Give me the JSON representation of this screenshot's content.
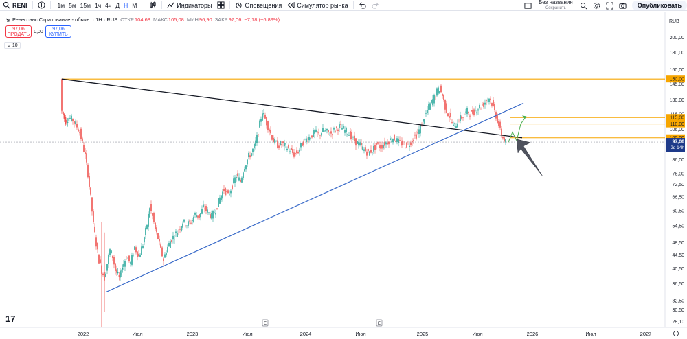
{
  "toolbar": {
    "symbol": "RENI",
    "intervals": [
      {
        "label": "1м",
        "active": false
      },
      {
        "label": "5м",
        "active": false
      },
      {
        "label": "15м",
        "active": false
      },
      {
        "label": "1ч",
        "active": false
      },
      {
        "label": "4ч",
        "active": false
      },
      {
        "label": "Д",
        "active": false
      },
      {
        "label": "Н",
        "active": true
      },
      {
        "label": "М",
        "active": false
      }
    ],
    "indicators_label": "Индикаторы",
    "alerts_label": "Оповещения",
    "replay_label": "Симулятор рынка",
    "layout_name": "Без названия",
    "layout_saved": "Сохранить",
    "publish_label": "Опубликовать"
  },
  "legend": {
    "title": "Ренессанс Страхование - обыкн. · 1Н · RUS",
    "open_label": "ОТКР",
    "open_value": "104,68",
    "high_label": "МАКС",
    "high_value": "105,08",
    "low_label": "МИН",
    "low_value": "96,90",
    "close_label": "ЗАКР",
    "close_value": "97,06",
    "change": "−7,18 (−6,89%)",
    "sell_price": "97,06",
    "sell_label": "ПРОДАТЬ",
    "spread": "0,00",
    "buy_price": "97,06",
    "buy_label": "КУПИТЬ",
    "volume_chip": "10"
  },
  "colors": {
    "up": "#26a69a",
    "down": "#ef5350",
    "orange": "#f7a600",
    "blue": "#3a6bc9",
    "black": "#131722",
    "green": "#4caf50",
    "arrow": "#50535e"
  },
  "chart_data": {
    "type": "candlestick",
    "currency": "RUB",
    "price_scale": "log",
    "price_labels": [
      "220,00",
      "200,00",
      "180,00",
      "160,00",
      "145,00",
      "130,00",
      "118,00",
      "106,00",
      "86,00",
      "78,00",
      "72,50",
      "66,50",
      "60,50",
      "54,50",
      "48,50",
      "44,50",
      "40,50",
      "36,50",
      "32,50",
      "30,50",
      "28,10"
    ],
    "price_levels": [
      220,
      200,
      180,
      160,
      145,
      130,
      118,
      106,
      86,
      78,
      72.5,
      66.5,
      60.5,
      54.5,
      48.5,
      44.5,
      40.5,
      36.5,
      32.5,
      30.5,
      28.1
    ],
    "time_labels": [
      "2022",
      "Июл",
      "2023",
      "Июл",
      "2024",
      "Июл",
      "2025",
      "Июл",
      "2026",
      "Июл",
      "2027"
    ],
    "time_label_t": [
      121,
      200,
      280,
      360,
      445,
      525,
      615,
      695,
      775,
      860,
      940
    ],
    "earnings_markers_t": [
      386,
      552
    ],
    "horizontal_levels": [
      {
        "label": "150,00",
        "value": 150
      },
      {
        "label": "115,00",
        "value": 115
      },
      {
        "label": "110,00",
        "value": 110
      },
      {
        "label": "100,00",
        "value": 100
      }
    ],
    "last_price": {
      "label": "97,06",
      "value": 97.06,
      "countdown": "2d 14h"
    },
    "trendlines": [
      {
        "name": "resistance-trendline",
        "from": {
          "t": 90,
          "p": 150
        },
        "to": {
          "t": 760,
          "p": 100
        }
      },
      {
        "name": "support-trendline",
        "from": {
          "t": 155,
          "p": 34.5
        },
        "to": {
          "t": 762,
          "p": 127
        }
      }
    ],
    "candles_anchor_points": [
      [
        90,
        150
      ],
      [
        92,
        120
      ],
      [
        97,
        112
      ],
      [
        102,
        115
      ],
      [
        108,
        113
      ],
      [
        114,
        108
      ],
      [
        118,
        104
      ],
      [
        122,
        96
      ],
      [
        126,
        88
      ],
      [
        130,
        78
      ],
      [
        134,
        66
      ],
      [
        138,
        55
      ],
      [
        142,
        48
      ],
      [
        146,
        43
      ],
      [
        150,
        40
      ],
      [
        154,
        38
      ],
      [
        158,
        42
      ],
      [
        162,
        46
      ],
      [
        166,
        44
      ],
      [
        170,
        40
      ],
      [
        175,
        38
      ],
      [
        180,
        41
      ],
      [
        186,
        44
      ],
      [
        192,
        42
      ],
      [
        198,
        47
      ],
      [
        204,
        44
      ],
      [
        210,
        48
      ],
      [
        216,
        55
      ],
      [
        220,
        62
      ],
      [
        224,
        58
      ],
      [
        228,
        53
      ],
      [
        232,
        50
      ],
      [
        236,
        46
      ],
      [
        240,
        43
      ],
      [
        244,
        46
      ],
      [
        250,
        49
      ],
      [
        256,
        51
      ],
      [
        262,
        53
      ],
      [
        268,
        56
      ],
      [
        274,
        55
      ],
      [
        280,
        56
      ],
      [
        286,
        59
      ],
      [
        292,
        58
      ],
      [
        298,
        62
      ],
      [
        304,
        60
      ],
      [
        310,
        58
      ],
      [
        316,
        61
      ],
      [
        322,
        66
      ],
      [
        328,
        70
      ],
      [
        334,
        67
      ],
      [
        340,
        72
      ],
      [
        346,
        77
      ],
      [
        352,
        74
      ],
      [
        356,
        80
      ],
      [
        360,
        84
      ],
      [
        364,
        88
      ],
      [
        368,
        90
      ],
      [
        372,
        94
      ],
      [
        376,
        100
      ],
      [
        380,
        110
      ],
      [
        384,
        120
      ],
      [
        388,
        114
      ],
      [
        392,
        108
      ],
      [
        396,
        103
      ],
      [
        400,
        98
      ],
      [
        406,
        95
      ],
      [
        412,
        96
      ],
      [
        418,
        94
      ],
      [
        424,
        92
      ],
      [
        430,
        89
      ],
      [
        436,
        91
      ],
      [
        442,
        96
      ],
      [
        448,
        99
      ],
      [
        454,
        101
      ],
      [
        460,
        104
      ],
      [
        466,
        102
      ],
      [
        472,
        105
      ],
      [
        478,
        104
      ],
      [
        484,
        103
      ],
      [
        490,
        106
      ],
      [
        496,
        108
      ],
      [
        502,
        106
      ],
      [
        508,
        104
      ],
      [
        514,
        100
      ],
      [
        520,
        97
      ],
      [
        526,
        95
      ],
      [
        532,
        92
      ],
      [
        538,
        90
      ],
      [
        544,
        92
      ],
      [
        550,
        95
      ],
      [
        556,
        94
      ],
      [
        562,
        96
      ],
      [
        568,
        98
      ],
      [
        574,
        100
      ],
      [
        580,
        98
      ],
      [
        586,
        96
      ],
      [
        592,
        95
      ],
      [
        598,
        96
      ],
      [
        604,
        100
      ],
      [
        610,
        103
      ],
      [
        616,
        110
      ],
      [
        622,
        118
      ],
      [
        628,
        126
      ],
      [
        634,
        132
      ],
      [
        638,
        138
      ],
      [
        642,
        140
      ],
      [
        646,
        134
      ],
      [
        650,
        124
      ],
      [
        654,
        118
      ],
      [
        658,
        114
      ],
      [
        662,
        108
      ],
      [
        666,
        110
      ],
      [
        670,
        114
      ],
      [
        676,
        116
      ],
      [
        682,
        120
      ],
      [
        688,
        118
      ],
      [
        694,
        121
      ],
      [
        700,
        124
      ],
      [
        706,
        126
      ],
      [
        710,
        130
      ],
      [
        714,
        132
      ],
      [
        718,
        127
      ],
      [
        722,
        120
      ],
      [
        726,
        113
      ],
      [
        730,
        105
      ],
      [
        734,
        100
      ],
      [
        738,
        97.06
      ]
    ],
    "projection_path": [
      [
        740,
        97
      ],
      [
        746,
        104
      ],
      [
        752,
        98
      ],
      [
        758,
        110
      ],
      [
        766,
        116
      ]
    ]
  }
}
